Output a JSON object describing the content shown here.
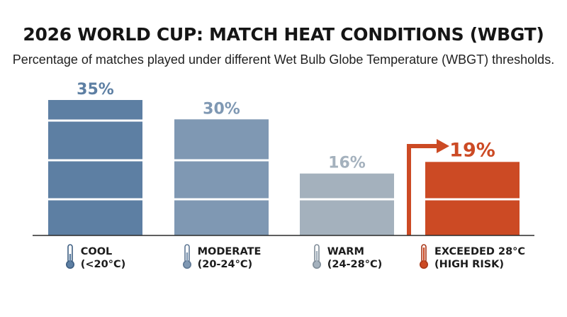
{
  "header": {
    "title": "2026 WORLD CUP: MATCH HEAT CONDITIONS (WBGT)",
    "subtitle": "Percentage of matches played under different Wet Bulb Globe Temperature (WBGT) thresholds."
  },
  "chart_data": {
    "type": "bar",
    "title": "2026 WORLD CUP: MATCH HEAT CONDITIONS (WBGT)",
    "subtitle": "Percentage of matches played under different Wet Bulb Globe Temperature (WBGT) thresholds.",
    "categories": [
      "COOL (<20°C)",
      "MODERATE (20-24°C)",
      "WARM (24-28°C)",
      "EXCEEDED 28°C (HIGH RISK)"
    ],
    "values": [
      35,
      30,
      16,
      19
    ],
    "labels": [
      "35%",
      "30%",
      "16%",
      "19%"
    ],
    "unit": "%",
    "ylim": [
      0,
      37
    ],
    "grid": false,
    "colors": [
      "#5d7fa3",
      "#7f98b3",
      "#a4b1bd",
      "#cc4a24"
    ],
    "highlight_index": 3
  },
  "categories_display": [
    {
      "line1": "COOL",
      "line2": "(<20°C)",
      "icon": "thermometer-icon-cool"
    },
    {
      "line1": "MODERATE",
      "line2": "(20-24°C)",
      "icon": "thermometer-icon-moderate"
    },
    {
      "line1": "WARM",
      "line2": "(24-28°C)",
      "icon": "thermometer-icon-warm"
    },
    {
      "line1": "EXCEEDED 28°C",
      "line2": "(HIGH RISK)",
      "icon": "thermometer-icon-hot"
    }
  ]
}
